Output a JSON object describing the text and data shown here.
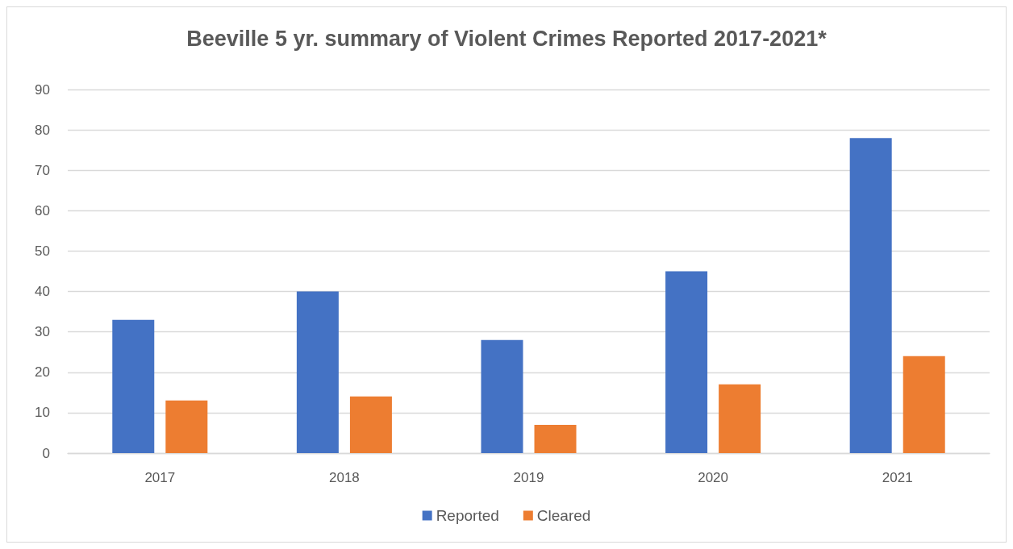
{
  "chart_data": {
    "type": "bar",
    "title": "Beeville 5 yr. summary of Violent Crimes Reported 2017-2021*",
    "categories": [
      "2017",
      "2018",
      "2019",
      "2020",
      "2021"
    ],
    "series": [
      {
        "name": "Reported",
        "color": "#4472c4",
        "values": [
          33,
          40,
          28,
          45,
          78
        ]
      },
      {
        "name": "Cleared",
        "color": "#ed7d31",
        "values": [
          13,
          14,
          7,
          17,
          24
        ]
      }
    ],
    "ylim": [
      0,
      90
    ],
    "yticks": [
      0,
      10,
      20,
      30,
      40,
      50,
      60,
      70,
      80,
      90
    ],
    "grid": "y",
    "legend": "bottom"
  }
}
